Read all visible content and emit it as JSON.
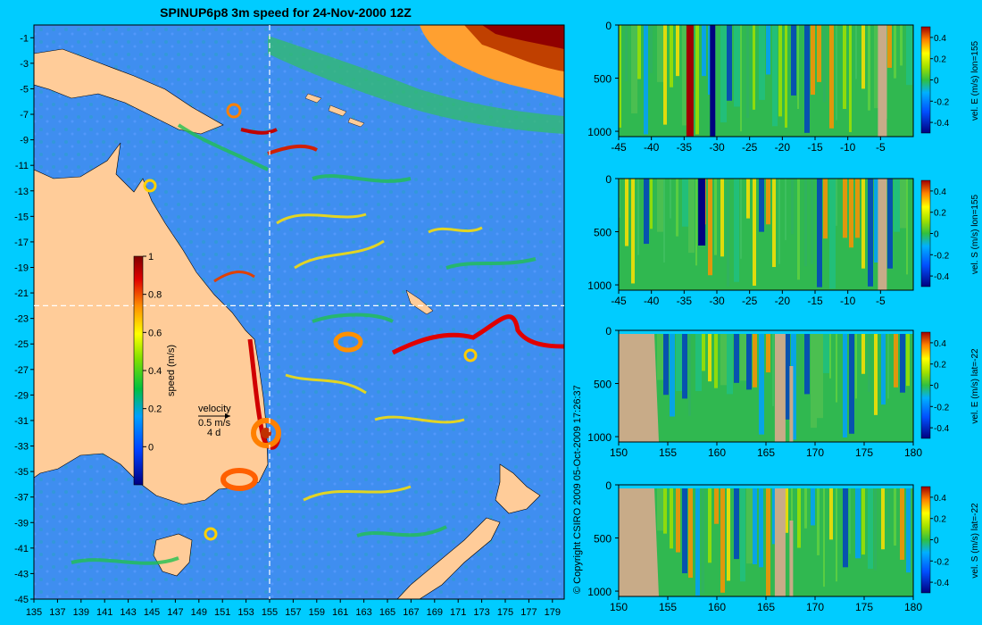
{
  "title": "SPINUP6p8 3m speed for 24-Nov-2000 12Z",
  "copyright": "© Copyright CSIRO 2009   05-Oct-2009 17:26:37",
  "colors": {
    "background": "#00ccff",
    "land": "#ffcc99",
    "section_land": "#c8ab88",
    "ocean_base": "#3f8ef0"
  },
  "map": {
    "lon_ticks": [
      "135",
      "137",
      "139",
      "141",
      "143",
      "145",
      "147",
      "149",
      "151",
      "153",
      "155",
      "157",
      "159",
      "161",
      "163",
      "165",
      "167",
      "169",
      "171",
      "173",
      "175",
      "177",
      "179"
    ],
    "lat_ticks": [
      "-1",
      "-3",
      "-5",
      "-7",
      "-9",
      "-11",
      "-13",
      "-15",
      "-17",
      "-19",
      "-21",
      "-23",
      "-25",
      "-27",
      "-29",
      "-31",
      "-33",
      "-35",
      "-37",
      "-39",
      "-41",
      "-43",
      "-45"
    ],
    "lon_range": [
      135,
      180
    ],
    "lat_range": [
      -45,
      0
    ],
    "section_lon": 155,
    "section_lat": -22,
    "colorbar": {
      "label": "speed (m/s)",
      "ticks": [
        "1",
        "0.8",
        "0.6",
        "0.4",
        "0.2",
        "0"
      ],
      "range": [
        -0.2,
        1
      ]
    },
    "velocity_legend": {
      "title": "velocity",
      "speed": "0.5 m/s",
      "days": "4 d"
    }
  },
  "sections": [
    {
      "label": "vel. E (m/s) lon=155",
      "x_ticks": [
        "-45",
        "-40",
        "-35",
        "-30",
        "-25",
        "-20",
        "-15",
        "-10",
        "-5"
      ],
      "y_ticks": [
        "0",
        "500",
        "1000"
      ],
      "cbar_ticks": [
        "0.4",
        "0.2",
        "0",
        "-0.2",
        "-0.4"
      ]
    },
    {
      "label": "vel. S (m/s) lon=155",
      "x_ticks": [
        "-45",
        "-40",
        "-35",
        "-30",
        "-25",
        "-20",
        "-15",
        "-10",
        "-5"
      ],
      "y_ticks": [
        "0",
        "500",
        "1000"
      ],
      "cbar_ticks": [
        "0.4",
        "0.2",
        "0",
        "-0.2",
        "-0.4"
      ]
    },
    {
      "label": "vel. E (m/s) lat=-22",
      "x_ticks": [
        "150",
        "155",
        "160",
        "165",
        "170",
        "175",
        "180"
      ],
      "y_ticks": [
        "0",
        "500",
        "1000"
      ],
      "cbar_ticks": [
        "0.4",
        "0.2",
        "0",
        "-0.2",
        "-0.4"
      ]
    },
    {
      "label": "vel. S (m/s) lat=-22",
      "x_ticks": [
        "150",
        "155",
        "160",
        "165",
        "170",
        "175",
        "180"
      ],
      "y_ticks": [
        "0",
        "500",
        "1000"
      ],
      "cbar_ticks": [
        "0.4",
        "0.2",
        "0",
        "-0.2",
        "-0.4"
      ]
    }
  ]
}
